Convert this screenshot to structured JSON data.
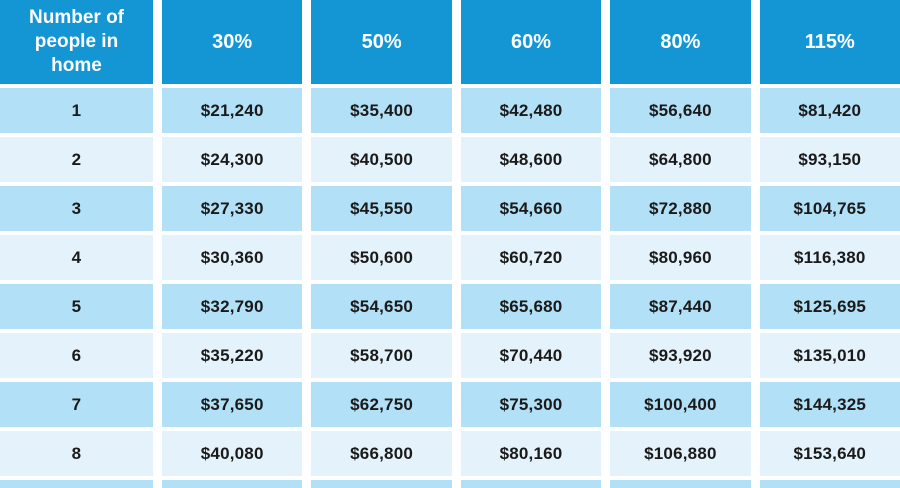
{
  "table": {
    "header": {
      "row_label": "Number of people in home",
      "columns": [
        "30%",
        "50%",
        "60%",
        "80%",
        "115%"
      ]
    },
    "rows": [
      {
        "people": "1",
        "values": [
          "$21,240",
          "$35,400",
          "$42,480",
          "$56,640",
          "$81,420"
        ]
      },
      {
        "people": "2",
        "values": [
          "$24,300",
          "$40,500",
          "$48,600",
          "$64,800",
          "$93,150"
        ]
      },
      {
        "people": "3",
        "values": [
          "$27,330",
          "$45,550",
          "$54,660",
          "$72,880",
          "$104,765"
        ]
      },
      {
        "people": "4",
        "values": [
          "$30,360",
          "$50,600",
          "$60,720",
          "$80,960",
          "$116,380"
        ]
      },
      {
        "people": "5",
        "values": [
          "$32,790",
          "$54,650",
          "$65,680",
          "$87,440",
          "$125,695"
        ]
      },
      {
        "people": "6",
        "values": [
          "$35,220",
          "$58,700",
          "$70,440",
          "$93,920",
          "$135,010"
        ]
      },
      {
        "people": "7",
        "values": [
          "$37,650",
          "$62,750",
          "$75,300",
          "$100,400",
          "$144,325"
        ]
      },
      {
        "people": "8",
        "values": [
          "$40,080",
          "$66,800",
          "$80,160",
          "$106,880",
          "$153,640"
        ]
      }
    ]
  },
  "colors": {
    "header_bg": "#1496d4",
    "header_text": "#ffffff",
    "row_odd_bg": "#b2e0f6",
    "row_even_bg": "#e4f2fb",
    "text_dark": "#1a1a1a",
    "gap_white": "#ffffff"
  },
  "chart_data": {
    "type": "table",
    "title": "Income limits by number of people in home and percentage tier",
    "columns": [
      "Number of people in home",
      "30%",
      "50%",
      "60%",
      "80%",
      "115%"
    ],
    "rows": [
      [
        "1",
        "$21,240",
        "$35,400",
        "$42,480",
        "$56,640",
        "$81,420"
      ],
      [
        "2",
        "$24,300",
        "$40,500",
        "$48,600",
        "$64,800",
        "$93,150"
      ],
      [
        "3",
        "$27,330",
        "$45,550",
        "$54,660",
        "$72,880",
        "$104,765"
      ],
      [
        "4",
        "$30,360",
        "$50,600",
        "$60,720",
        "$80,960",
        "$116,380"
      ],
      [
        "5",
        "$32,790",
        "$54,650",
        "$65,680",
        "$87,440",
        "$125,695"
      ],
      [
        "6",
        "$35,220",
        "$58,700",
        "$70,440",
        "$93,920",
        "$135,010"
      ],
      [
        "7",
        "$37,650",
        "$62,750",
        "$75,300",
        "$100,400",
        "$144,325"
      ],
      [
        "8",
        "$40,080",
        "$66,800",
        "$80,160",
        "$106,880",
        "$153,640"
      ]
    ]
  }
}
